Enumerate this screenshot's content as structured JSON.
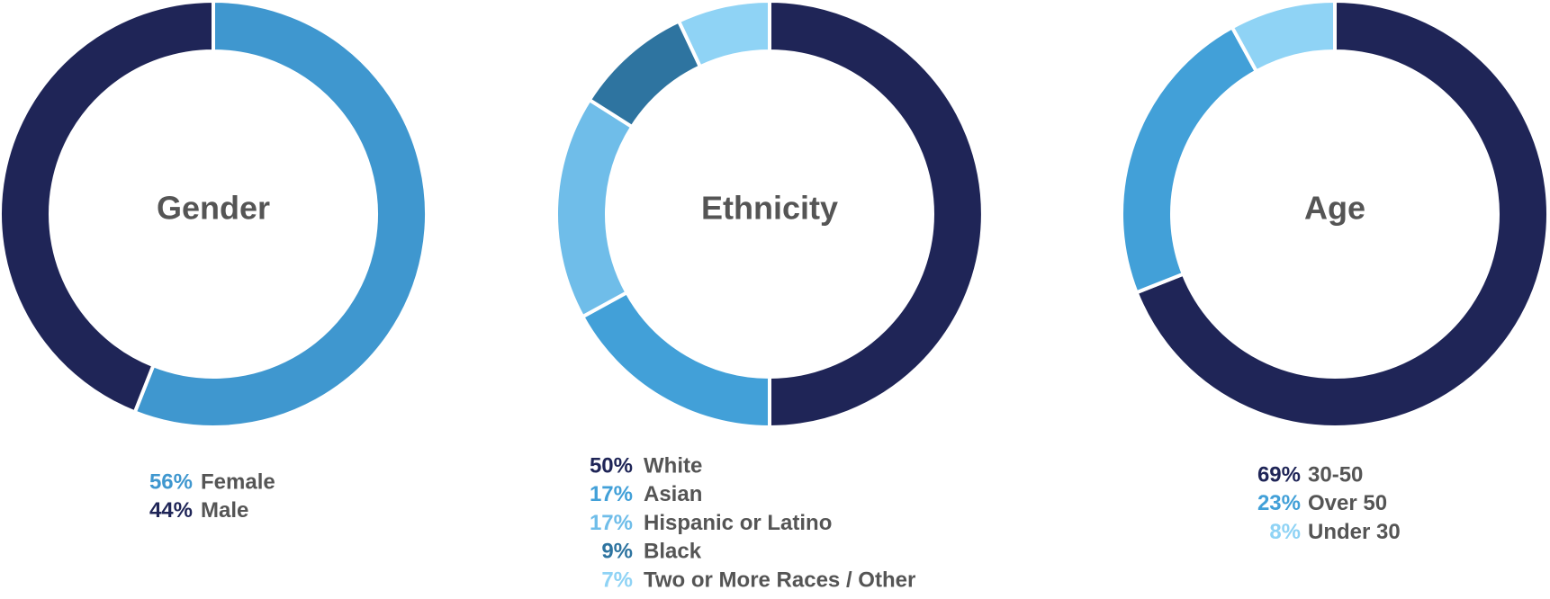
{
  "chart_data": [
    {
      "type": "pie",
      "title": "Gender",
      "categories": [
        "Female",
        "Male"
      ],
      "values": [
        56,
        44
      ],
      "value_labels": [
        "56%",
        "44%"
      ],
      "colors": [
        "#3f97cf",
        "#1f2557"
      ]
    },
    {
      "type": "pie",
      "title": "Ethnicity",
      "categories": [
        "White",
        "Asian",
        "Hispanic or Latino",
        "Black",
        "Two or More Races / Other"
      ],
      "values": [
        50,
        17,
        17,
        9,
        7
      ],
      "value_labels": [
        "50%",
        "17%",
        "17%",
        "9%",
        "7%"
      ],
      "colors": [
        "#1f2557",
        "#42a0d8",
        "#6fbde9",
        "#2e74a0",
        "#8fd3f5"
      ]
    },
    {
      "type": "pie",
      "title": "Age",
      "categories": [
        "30-50",
        "Over 50",
        "Under 30"
      ],
      "values": [
        69,
        23,
        8
      ],
      "value_labels": [
        "69%",
        "23%",
        "8%"
      ],
      "colors": [
        "#1f2557",
        "#42a0d8",
        "#8fd3f5"
      ]
    }
  ]
}
